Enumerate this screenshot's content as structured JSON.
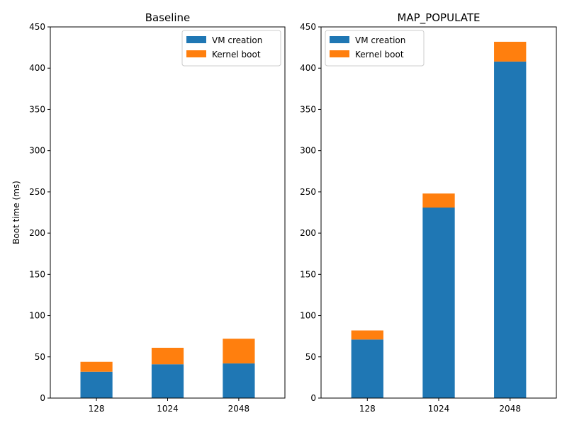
{
  "chart_data": [
    {
      "type": "bar",
      "stacked": true,
      "title": "Baseline",
      "xlabel": "",
      "ylabel": "Boot time (ms)",
      "categories": [
        "128",
        "1024",
        "2048"
      ],
      "series": [
        {
          "name": "VM creation",
          "color": "#1f77b4",
          "values": [
            32,
            41,
            42
          ]
        },
        {
          "name": "Kernel boot",
          "color": "#ff7f0e",
          "values": [
            12,
            20,
            30
          ]
        }
      ],
      "ylim": [
        0,
        450
      ],
      "yticks": [
        0,
        50,
        100,
        150,
        200,
        250,
        300,
        350,
        400,
        450
      ],
      "grid": false,
      "legend": "upper right"
    },
    {
      "type": "bar",
      "stacked": true,
      "title": "MAP_POPULATE",
      "xlabel": "",
      "ylabel": "",
      "categories": [
        "128",
        "1024",
        "2048"
      ],
      "series": [
        {
          "name": "VM creation",
          "color": "#1f77b4",
          "values": [
            71,
            231,
            408
          ]
        },
        {
          "name": "Kernel boot",
          "color": "#ff7f0e",
          "values": [
            11,
            17,
            24
          ]
        }
      ],
      "ylim": [
        0,
        450
      ],
      "yticks": [
        0,
        50,
        100,
        150,
        200,
        250,
        300,
        350,
        400,
        450
      ],
      "grid": false,
      "legend": "upper left"
    }
  ]
}
